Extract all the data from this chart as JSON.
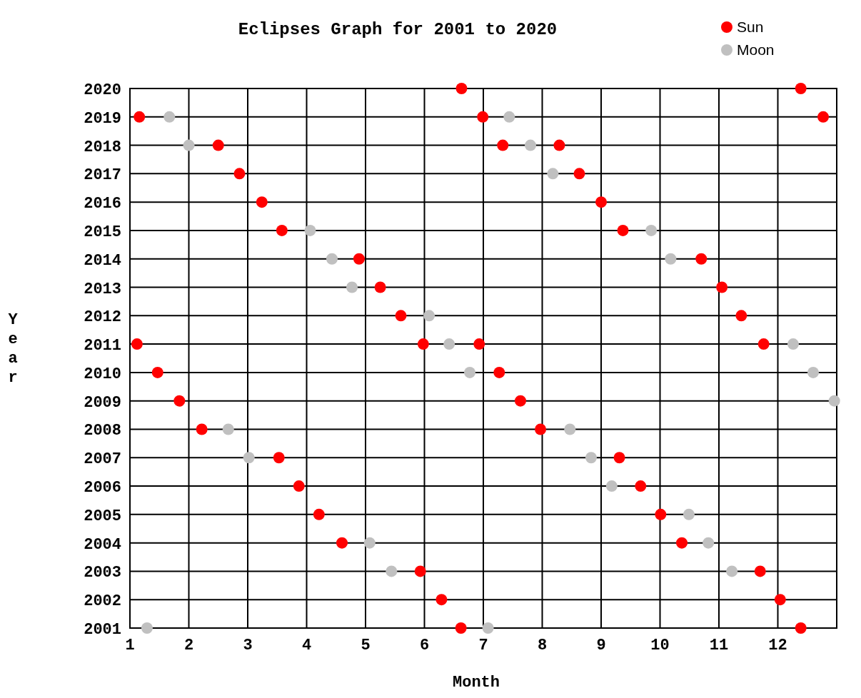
{
  "chart_data": {
    "type": "scatter",
    "title": "Eclipses Graph for 2001 to 2020",
    "xlabel": "Month",
    "ylabel": "Year",
    "xlim": [
      1,
      13
    ],
    "xticks": [
      1,
      2,
      3,
      4,
      5,
      6,
      7,
      8,
      9,
      10,
      11,
      12
    ],
    "ylim": [
      2001,
      2020
    ],
    "yticks": [
      2001,
      2002,
      2003,
      2004,
      2005,
      2006,
      2007,
      2008,
      2009,
      2010,
      2011,
      2012,
      2013,
      2014,
      2015,
      2016,
      2017,
      2018,
      2019,
      2020
    ],
    "grid": true,
    "legend": "top right",
    "marker": "circle",
    "series": [
      {
        "name": "Sun",
        "color": "#ff0000",
        "x": [
          6.63,
          12.39,
          1.16,
          6.99,
          12.77,
          2.5,
          7.33,
          8.29,
          2.86,
          8.63,
          3.24,
          9.0,
          3.58,
          9.37,
          4.89,
          10.7,
          5.25,
          11.05,
          5.6,
          11.38,
          1.12,
          5.98,
          6.93,
          11.76,
          1.47,
          7.27,
          1.84,
          7.63,
          2.22,
          7.97,
          3.53,
          9.31,
          3.87,
          9.67,
          4.21,
          10.01,
          4.6,
          10.37,
          5.93,
          11.7,
          6.29,
          12.04,
          6.62,
          12.39
        ],
        "values": [
          2020,
          2020,
          2019,
          2019,
          2019,
          2018,
          2018,
          2018,
          2017,
          2017,
          2016,
          2016,
          2015,
          2015,
          2014,
          2014,
          2013,
          2013,
          2012,
          2012,
          2011,
          2011,
          2011,
          2011,
          2010,
          2010,
          2009,
          2009,
          2008,
          2008,
          2007,
          2007,
          2006,
          2006,
          2005,
          2005,
          2004,
          2004,
          2003,
          2003,
          2002,
          2002,
          2001,
          2001
        ]
      },
      {
        "name": "Moon",
        "color": "#c0c0c0",
        "x": [
          1.67,
          7.44,
          2.0,
          7.8,
          8.18,
          4.06,
          9.85,
          4.43,
          10.18,
          4.77,
          6.08,
          6.42,
          12.26,
          6.77,
          12.6,
          12.96,
          2.67,
          8.47,
          3.02,
          8.83,
          9.18,
          10.49,
          5.07,
          10.82,
          5.44,
          11.22,
          1.29,
          7.08
        ],
        "values": [
          2019,
          2019,
          2018,
          2018,
          2017,
          2015,
          2015,
          2014,
          2014,
          2013,
          2012,
          2011,
          2011,
          2010,
          2010,
          2009,
          2008,
          2008,
          2007,
          2007,
          2006,
          2005,
          2004,
          2004,
          2003,
          2003,
          2001,
          2001
        ]
      }
    ]
  }
}
